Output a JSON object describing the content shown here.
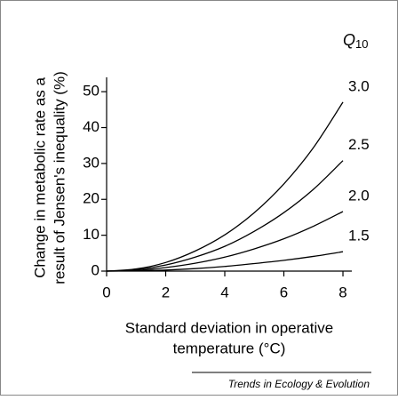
{
  "chart_data": {
    "type": "line",
    "y_label_lines": [
      "Change in metabolic rate as a",
      "result of Jensen's inequality (%)"
    ],
    "x_label_lines": [
      "Standard deviation in operative",
      "temperature (°C)"
    ],
    "legend_title": "Q",
    "legend_title_sub": "10",
    "source": "Trends in Ecology & Evolution",
    "x": [
      0,
      1,
      2,
      3,
      4,
      5,
      6,
      7,
      8
    ],
    "series": [
      {
        "name": "3.0",
        "color": "#000000",
        "values": [
          0,
          0.6,
          2.4,
          5.6,
          10.1,
          16.3,
          24.3,
          34.4,
          47.1
        ]
      },
      {
        "name": "2.5",
        "color": "#000000",
        "values": [
          0,
          0.4,
          1.7,
          3.9,
          6.9,
          11.1,
          16.3,
          22.8,
          30.8
        ]
      },
      {
        "name": "2.0",
        "color": "#000000",
        "values": [
          0,
          0.2,
          1.0,
          2.2,
          3.9,
          6.2,
          9.0,
          12.5,
          16.6
        ]
      },
      {
        "name": "1.5",
        "color": "#000000",
        "values": [
          0,
          0.1,
          0.3,
          0.7,
          1.3,
          2.1,
          3.0,
          4.1,
          5.4
        ]
      }
    ],
    "xlim": [
      0,
      8.3
    ],
    "ylim": [
      0,
      54
    ],
    "xticks": [
      0,
      2,
      4,
      6,
      8
    ],
    "yticks": [
      0,
      10,
      20,
      30,
      40,
      50
    ],
    "grid": false
  }
}
